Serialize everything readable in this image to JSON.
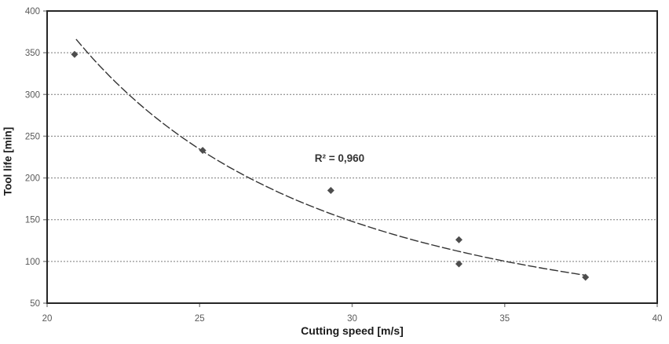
{
  "chart_data": {
    "type": "scatter",
    "title": "",
    "xlabel": "Cutting speed [m/s]",
    "ylabel": "Tool life [min]",
    "xlim": [
      20,
      40
    ],
    "ylim": [
      50,
      400
    ],
    "x_ticks": [
      20,
      25,
      30,
      35,
      40
    ],
    "y_ticks": [
      50,
      100,
      150,
      200,
      250,
      300,
      350,
      400
    ],
    "grid": "horizontal-dashed",
    "legend": "none",
    "points": [
      {
        "x": 20.9,
        "y": 348
      },
      {
        "x": 25.1,
        "y": 233
      },
      {
        "x": 29.3,
        "y": 185
      },
      {
        "x": 33.5,
        "y": 126
      },
      {
        "x": 33.5,
        "y": 97
      },
      {
        "x": 37.65,
        "y": 81
      }
    ],
    "trendline": {
      "type": "power",
      "a": 791500,
      "b": -2.524,
      "x_start": 20.95,
      "x_end": 37.65,
      "style": "dashed",
      "r_squared": "0,960"
    },
    "annotation": {
      "text": "R² = 0,960",
      "x": 28.77,
      "y": 224
    },
    "colors": {
      "marker": "#4d4d4d",
      "trendline": "#333333",
      "grid": "#7a7a7a",
      "axis": "#262626",
      "tick_label": "#595959",
      "axis_title": "#1a1a1a",
      "background": "#ffffff"
    }
  }
}
